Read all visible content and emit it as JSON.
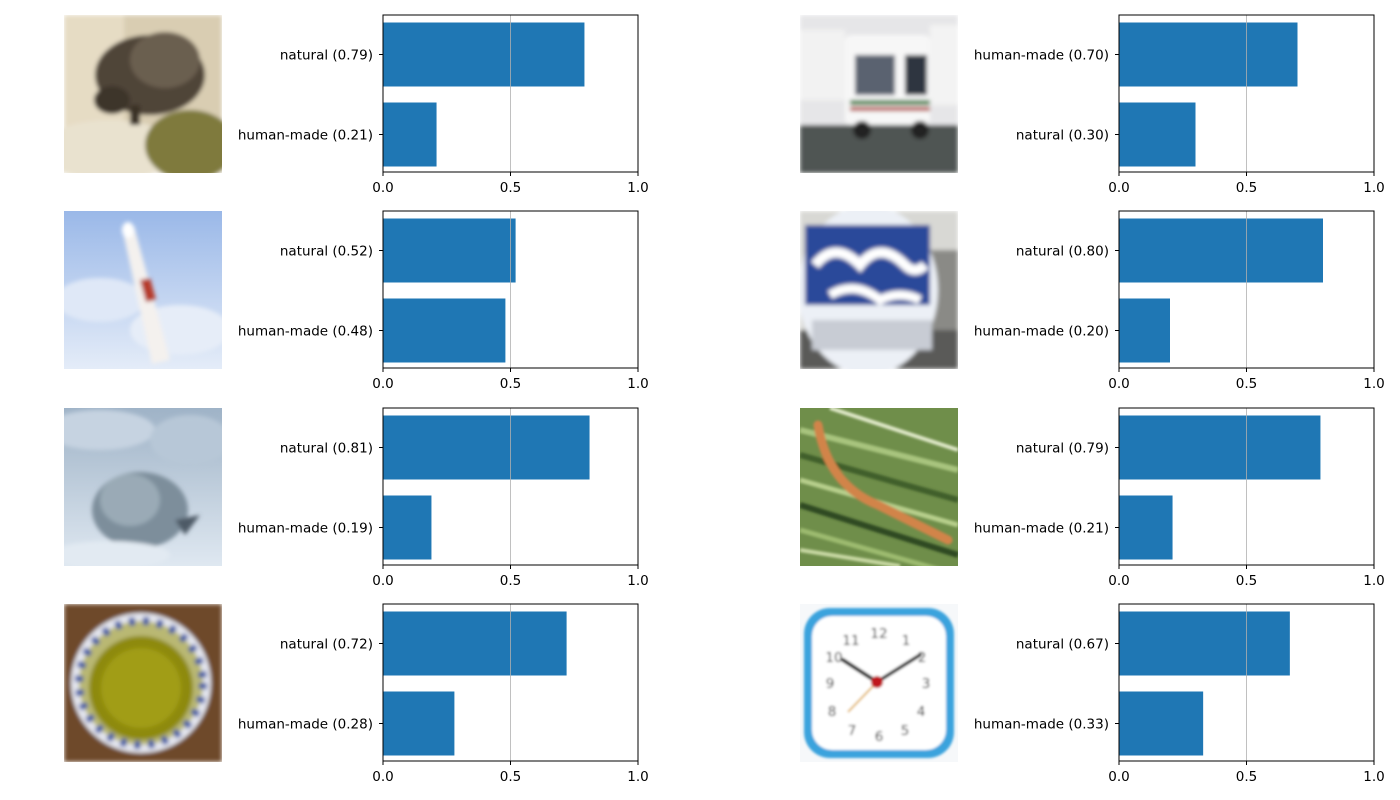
{
  "bar_color": "#1f77b4",
  "chart_data": [
    {
      "type": "bar",
      "orientation": "horizontal",
      "thumbnail": "porcupine-thumbnail",
      "categories": [
        "natural (0.79)",
        "human-made (0.21)"
      ],
      "values": [
        0.79,
        0.21
      ],
      "xlim": [
        0,
        1
      ],
      "xticks": [
        "0.0",
        "0.5",
        "1.0"
      ],
      "grid": "vertical-at-0.5"
    },
    {
      "type": "bar",
      "orientation": "horizontal",
      "thumbnail": "vehicle-thumbnail",
      "categories": [
        "human-made (0.70)",
        "natural (0.30)"
      ],
      "values": [
        0.7,
        0.3
      ],
      "xlim": [
        0,
        1
      ],
      "xticks": [
        "0.0",
        "0.5",
        "1.0"
      ],
      "grid": "vertical-at-0.5"
    },
    {
      "type": "bar",
      "orientation": "horizontal",
      "thumbnail": "rocket-thumbnail",
      "categories": [
        "natural (0.52)",
        "human-made (0.48)"
      ],
      "values": [
        0.52,
        0.48
      ],
      "xlim": [
        0,
        1
      ],
      "xticks": [
        "0.0",
        "0.5",
        "1.0"
      ],
      "grid": "vertical-at-0.5"
    },
    {
      "type": "bar",
      "orientation": "horizontal",
      "thumbnail": "inflatable-can-thumbnail",
      "categories": [
        "natural (0.80)",
        "human-made (0.20)"
      ],
      "values": [
        0.8,
        0.2
      ],
      "xlim": [
        0,
        1
      ],
      "xticks": [
        "0.0",
        "0.5",
        "1.0"
      ],
      "grid": "vertical-at-0.5"
    },
    {
      "type": "bar",
      "orientation": "horizontal",
      "thumbnail": "seal-thumbnail",
      "categories": [
        "natural (0.81)",
        "human-made (0.19)"
      ],
      "values": [
        0.81,
        0.19
      ],
      "xlim": [
        0,
        1
      ],
      "xticks": [
        "0.0",
        "0.5",
        "1.0"
      ],
      "grid": "vertical-at-0.5"
    },
    {
      "type": "bar",
      "orientation": "horizontal",
      "thumbnail": "caterpillar-thumbnail",
      "categories": [
        "natural (0.79)",
        "human-made (0.21)"
      ],
      "values": [
        0.79,
        0.21
      ],
      "xlim": [
        0,
        1
      ],
      "xticks": [
        "0.0",
        "0.5",
        "1.0"
      ],
      "grid": "vertical-at-0.5"
    },
    {
      "type": "bar",
      "orientation": "horizontal",
      "thumbnail": "bowl-thumbnail",
      "categories": [
        "natural (0.72)",
        "human-made (0.28)"
      ],
      "values": [
        0.72,
        0.28
      ],
      "xlim": [
        0,
        1
      ],
      "xticks": [
        "0.0",
        "0.5",
        "1.0"
      ],
      "grid": "vertical-at-0.5"
    },
    {
      "type": "bar",
      "orientation": "horizontal",
      "thumbnail": "clock-thumbnail",
      "categories": [
        "natural (0.67)",
        "human-made (0.33)"
      ],
      "values": [
        0.67,
        0.33
      ],
      "xlim": [
        0,
        1
      ],
      "xticks": [
        "0.0",
        "0.5",
        "1.0"
      ],
      "grid": "vertical-at-0.5"
    }
  ]
}
